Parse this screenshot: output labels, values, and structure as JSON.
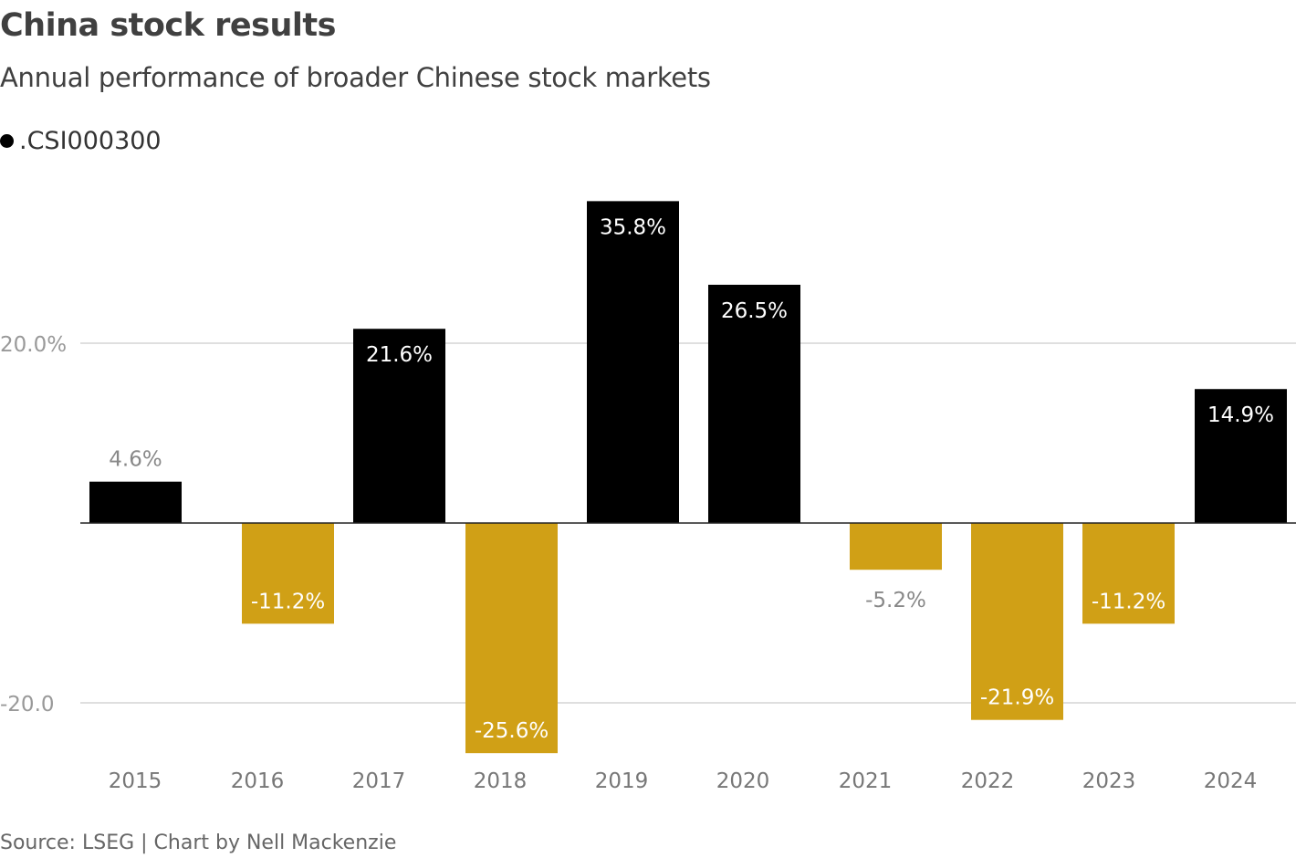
{
  "title": "China stock results",
  "subtitle": "Annual performance of broader Chinese stock markets",
  "legend": {
    "label": ".CSI000300",
    "color": "#000000"
  },
  "source": "Source: LSEG | Chart by Nell Mackenzie",
  "chart_data": {
    "type": "bar",
    "categories": [
      "2015",
      "2016",
      "2017",
      "2018",
      "2019",
      "2020",
      "2021",
      "2022",
      "2023",
      "2024"
    ],
    "series": [
      {
        "name": ".CSI000300",
        "values": [
          4.6,
          -11.2,
          21.6,
          -25.6,
          35.8,
          26.5,
          -5.2,
          -21.9,
          -11.2,
          14.9
        ]
      }
    ],
    "data_labels": [
      "4.6%",
      "-11.2%",
      "21.6%",
      "-25.6%",
      "35.8%",
      "26.5%",
      "-5.2%",
      "-21.9%",
      "-11.2%",
      "14.9%"
    ],
    "yticks": [
      {
        "value": 20,
        "label": "20.0%"
      },
      {
        "value": -20,
        "label": "-20.0"
      }
    ],
    "grid": true,
    "colors": {
      "positive": "#000000",
      "negative": "#d0a016"
    }
  }
}
